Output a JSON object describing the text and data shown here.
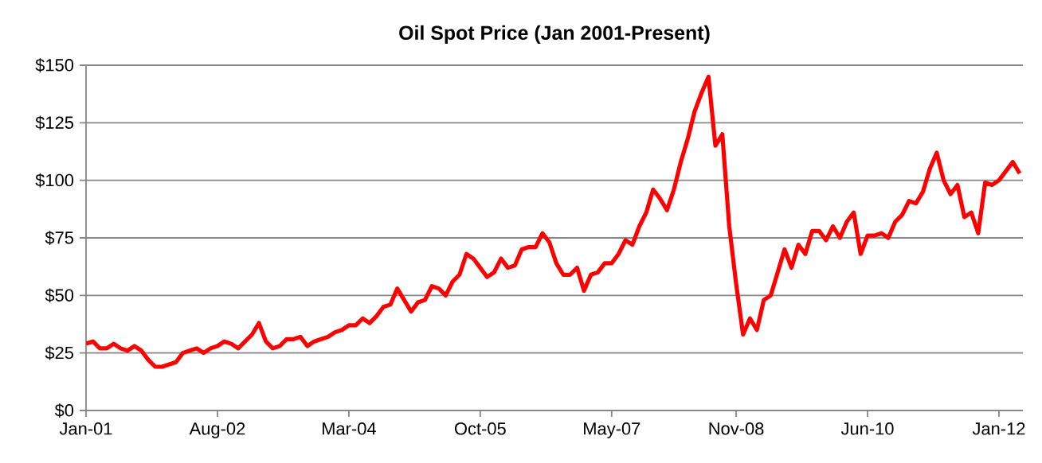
{
  "chart_data": {
    "type": "line",
    "title": "Oil Spot Price (Jan 2001-Present)",
    "x": [
      "2001-01",
      "2001-02",
      "2001-03",
      "2001-04",
      "2001-05",
      "2001-06",
      "2001-07",
      "2001-08",
      "2001-09",
      "2001-10",
      "2001-11",
      "2001-12",
      "2002-01",
      "2002-02",
      "2002-03",
      "2002-04",
      "2002-05",
      "2002-06",
      "2002-07",
      "2002-08",
      "2002-09",
      "2002-10",
      "2002-11",
      "2002-12",
      "2003-01",
      "2003-02",
      "2003-03",
      "2003-04",
      "2003-05",
      "2003-06",
      "2003-07",
      "2003-08",
      "2003-09",
      "2003-10",
      "2003-11",
      "2003-12",
      "2004-01",
      "2004-02",
      "2004-03",
      "2004-04",
      "2004-05",
      "2004-06",
      "2004-07",
      "2004-08",
      "2004-09",
      "2004-10",
      "2004-11",
      "2004-12",
      "2005-01",
      "2005-02",
      "2005-03",
      "2005-04",
      "2005-05",
      "2005-06",
      "2005-07",
      "2005-08",
      "2005-09",
      "2005-10",
      "2005-11",
      "2005-12",
      "2006-01",
      "2006-02",
      "2006-03",
      "2006-04",
      "2006-05",
      "2006-06",
      "2006-07",
      "2006-08",
      "2006-09",
      "2006-10",
      "2006-11",
      "2006-12",
      "2007-01",
      "2007-02",
      "2007-03",
      "2007-04",
      "2007-05",
      "2007-06",
      "2007-07",
      "2007-08",
      "2007-09",
      "2007-10",
      "2007-11",
      "2007-12",
      "2008-01",
      "2008-02",
      "2008-03",
      "2008-04",
      "2008-05",
      "2008-06",
      "2008-07",
      "2008-08",
      "2008-09",
      "2008-10",
      "2008-11",
      "2008-12",
      "2009-01",
      "2009-02",
      "2009-03",
      "2009-04",
      "2009-05",
      "2009-06",
      "2009-07",
      "2009-08",
      "2009-09",
      "2009-10",
      "2009-11",
      "2009-12",
      "2010-01",
      "2010-02",
      "2010-03",
      "2010-04",
      "2010-05",
      "2010-06",
      "2010-07",
      "2010-08",
      "2010-09",
      "2010-10",
      "2010-11",
      "2010-12",
      "2011-01",
      "2011-02",
      "2011-03",
      "2011-04",
      "2011-05",
      "2011-06",
      "2011-07",
      "2011-08",
      "2011-09",
      "2011-10",
      "2011-11",
      "2011-12",
      "2012-01",
      "2012-02",
      "2012-03",
      "2012-04"
    ],
    "series": [
      {
        "color": "#ff0000",
        "values": [
          29,
          30,
          27,
          27,
          29,
          27,
          26,
          28,
          26,
          22,
          19,
          19,
          20,
          21,
          25,
          26,
          27,
          25,
          27,
          28,
          30,
          29,
          27,
          30,
          33,
          38,
          30,
          27,
          28,
          31,
          31,
          32,
          28,
          30,
          31,
          32,
          34,
          35,
          37,
          37,
          40,
          38,
          41,
          45,
          46,
          53,
          48,
          43,
          47,
          48,
          54,
          53,
          50,
          56,
          59,
          68,
          66,
          62,
          58,
          60,
          66,
          62,
          63,
          70,
          71,
          71,
          77,
          73,
          64,
          59,
          59,
          62,
          52,
          59,
          60,
          64,
          64,
          68,
          74,
          72,
          80,
          86,
          96,
          92,
          87,
          96,
          108,
          118,
          130,
          138,
          145,
          115,
          120,
          80,
          55,
          33,
          40,
          35,
          48,
          50,
          60,
          70,
          62,
          72,
          68,
          78,
          78,
          74,
          80,
          75,
          82,
          86,
          68,
          76,
          76,
          77,
          75,
          82,
          85,
          91,
          90,
          95,
          105,
          112,
          100,
          94,
          98,
          84,
          86,
          77,
          99,
          98,
          100,
          104,
          108,
          103
        ]
      }
    ],
    "xlim": [
      "2001-01",
      "2012-04-15"
    ],
    "xticks": [
      {
        "value": "2001-01",
        "label": "Jan-01"
      },
      {
        "value": "2002-08",
        "label": "Aug-02"
      },
      {
        "value": "2004-03",
        "label": "Mar-04"
      },
      {
        "value": "2005-10",
        "label": "Oct-05"
      },
      {
        "value": "2007-05",
        "label": "May-07"
      },
      {
        "value": "2008-11",
        "label": "Nov-08"
      },
      {
        "value": "2010-06",
        "label": "Jun-10"
      },
      {
        "value": "2012-01",
        "label": "Jan-12"
      }
    ],
    "ylim": [
      0,
      150
    ],
    "yticks": [
      {
        "value": 0,
        "label": "$0"
      },
      {
        "value": 25,
        "label": "$25"
      },
      {
        "value": 50,
        "label": "$50"
      },
      {
        "value": 75,
        "label": "$75"
      },
      {
        "value": 100,
        "label": "$100"
      },
      {
        "value": 125,
        "label": "$125"
      },
      {
        "value": 150,
        "label": "$150"
      }
    ],
    "grid": "y",
    "marker": "none",
    "line_style": "solid"
  }
}
